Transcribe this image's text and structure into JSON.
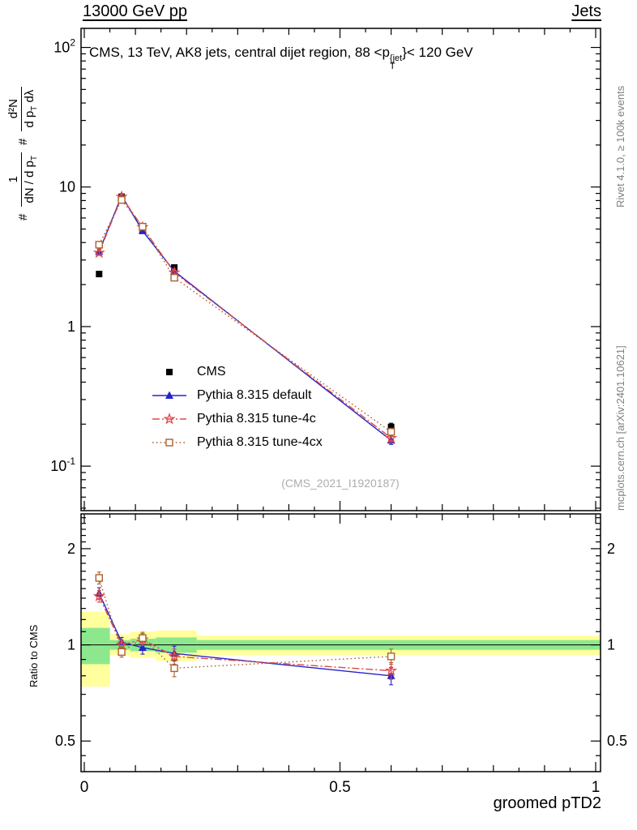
{
  "header": {
    "left": "13000 GeV pp",
    "right": "Jets"
  },
  "plot_title": {
    "prefix": "CMS, 13 TeV, AK8 jets, central dijet region, 88 <p",
    "sup": "{jet",
    "sub": "T",
    "suffix": "}< 120 GeV"
  },
  "ylabel_main": {
    "hash1": "#",
    "f1_num": "1",
    "f1_den": "dN / d p",
    "f1_den_sub": "T",
    "hash2": "#",
    "f2_num": "d²N",
    "f2_den_a": "d p",
    "f2_den_sub": "T",
    "f2_den_b": " dλ"
  },
  "ylabel_ratio": "Ratio to CMS",
  "watermark": "(CMS_2021_I1920187)",
  "right_labels": {
    "top": "Rivet 4.1.0, ≥ 100k events",
    "bottom": "mcplots.cern.ch [arXiv:2401.10621]"
  },
  "chart_data": {
    "type": "line",
    "title": "CMS, 13 TeV, AK8 jets, central dijet region, 88 < pT{jet} < 120 GeV",
    "xlabel": "groomed pTD2",
    "ylabel_main": "# 1/(dN/dpT) d²N/(dpT dλ)",
    "ylabel_ratio": "Ratio to CMS",
    "x": [
      0.029,
      0.073,
      0.114,
      0.176,
      0.6
    ],
    "series": [
      {
        "name": "CMS",
        "color": "#000000",
        "marker": "square-filled",
        "line": "none",
        "values": [
          2.38,
          8.5,
          4.95,
          2.65,
          0.191
        ],
        "errors": [
          0.09,
          0.28,
          0.18,
          0.1,
          0.012
        ]
      },
      {
        "name": "Pythia 8.315 default",
        "color": "#2424cc",
        "marker": "triangle-filled",
        "line": "solid",
        "values": [
          3.45,
          8.67,
          4.85,
          2.49,
          0.153
        ],
        "errors": [
          0.14,
          0.28,
          0.18,
          0.1,
          0.01
        ],
        "ratio": [
          1.45,
          1.02,
          0.98,
          0.94,
          0.8
        ],
        "ratio_err": [
          0.06,
          0.035,
          0.045,
          0.05,
          0.05
        ]
      },
      {
        "name": "Pythia 8.315 tune-4c",
        "color": "#e04848",
        "marker": "star-open",
        "line": "dashdot",
        "values": [
          3.38,
          8.5,
          5.15,
          2.44,
          0.159
        ],
        "errors": [
          0.14,
          0.28,
          0.18,
          0.1,
          0.01
        ],
        "ratio": [
          1.42,
          1.0,
          1.04,
          0.92,
          0.83
        ],
        "ratio_err": [
          0.06,
          0.035,
          0.045,
          0.05,
          0.05
        ]
      },
      {
        "name": "Pythia 8.315 tune-4cx",
        "color": "#a8622e",
        "marker": "square-open",
        "line": "dotted",
        "values": [
          3.86,
          8.08,
          5.2,
          2.24,
          0.176
        ],
        "errors": [
          0.15,
          0.28,
          0.18,
          0.1,
          0.011
        ],
        "ratio": [
          1.62,
          0.95,
          1.05,
          0.845,
          0.92
        ],
        "ratio_err": [
          0.07,
          0.035,
          0.045,
          0.05,
          0.05
        ]
      }
    ],
    "bands": {
      "yellow": {
        "color": "#ffff9e",
        "segments": [
          {
            "x0": 0.0,
            "x1": 0.05,
            "lo": 0.74,
            "hi": 1.27
          },
          {
            "x0": 0.05,
            "x1": 0.09,
            "lo": 0.93,
            "hi": 1.08
          },
          {
            "x0": 0.09,
            "x1": 0.14,
            "lo": 0.91,
            "hi": 1.1
          },
          {
            "x0": 0.14,
            "x1": 0.22,
            "lo": 0.89,
            "hi": 1.11
          },
          {
            "x0": 0.22,
            "x1": 1.0,
            "lo": 0.93,
            "hi": 1.07
          }
        ]
      },
      "green": {
        "color": "#8de88d",
        "segments": [
          {
            "x0": 0.0,
            "x1": 0.05,
            "lo": 0.87,
            "hi": 1.13
          },
          {
            "x0": 0.05,
            "x1": 0.09,
            "lo": 0.965,
            "hi": 1.035
          },
          {
            "x0": 0.09,
            "x1": 0.14,
            "lo": 0.955,
            "hi": 1.045
          },
          {
            "x0": 0.14,
            "x1": 0.22,
            "lo": 0.945,
            "hi": 1.055
          },
          {
            "x0": 0.22,
            "x1": 1.0,
            "lo": 0.965,
            "hi": 1.035
          }
        ]
      }
    },
    "axes": {
      "x": {
        "min": 0,
        "max": 1,
        "title": "groomed pTD2",
        "ticks": [
          {
            "v": 0,
            "label": "0"
          },
          {
            "v": 0.5,
            "label": "0.5"
          },
          {
            "v": 1,
            "label": "1"
          }
        ]
      },
      "y_main": {
        "scale": "log",
        "min": 0.048,
        "max": 137,
        "ticks": [
          {
            "v": 100,
            "mant": "10",
            "exp": "2"
          },
          {
            "v": 10,
            "mant": "10",
            "exp": ""
          },
          {
            "v": 1,
            "mant": "1",
            "exp": ""
          },
          {
            "v": 0.1,
            "mant": "10",
            "exp": "-1"
          }
        ]
      },
      "y_ratio": {
        "scale": "log",
        "min": 0.401,
        "max": 2.57,
        "ticks": [
          {
            "v": 0.5,
            "label": "0.5"
          },
          {
            "v": 1,
            "label": "1"
          },
          {
            "v": 2,
            "label": "2"
          }
        ]
      }
    }
  }
}
